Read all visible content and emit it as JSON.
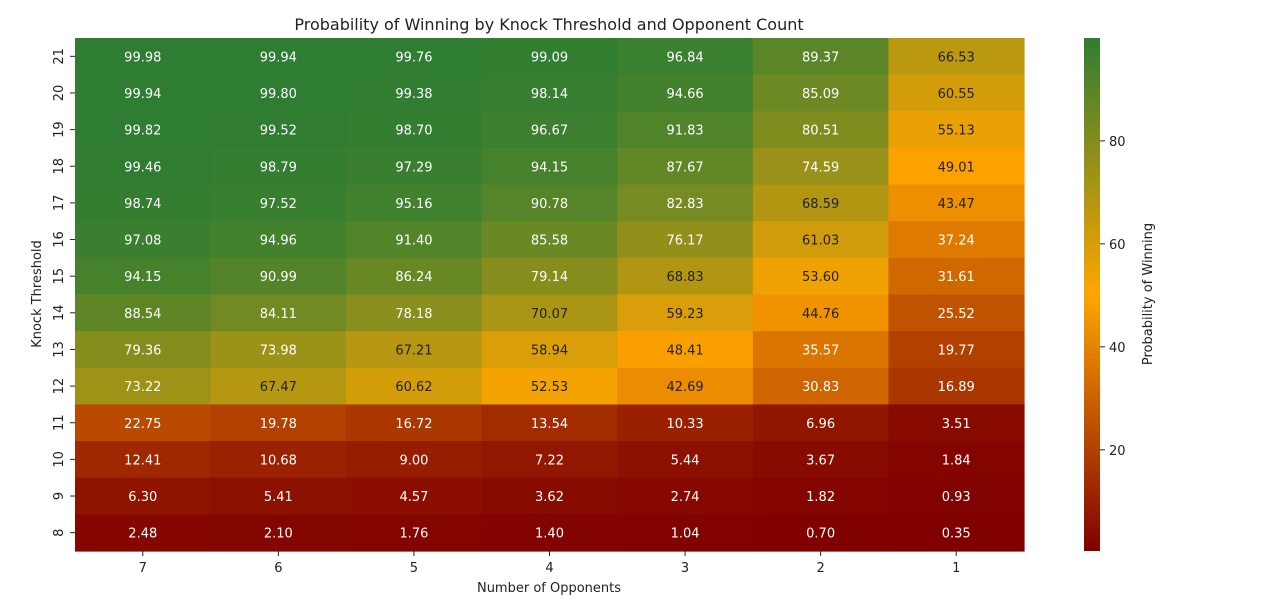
{
  "chart_data": {
    "type": "heatmap",
    "title": "Probability of Winning by Knock Threshold and Opponent Count",
    "xlabel": "Number of Opponents",
    "ylabel": "Knock Threshold",
    "x_categories": [
      "7",
      "6",
      "5",
      "4",
      "3",
      "2",
      "1"
    ],
    "y_categories": [
      "21",
      "20",
      "19",
      "18",
      "17",
      "16",
      "15",
      "14",
      "13",
      "12",
      "11",
      "10",
      "9",
      "8"
    ],
    "values": [
      [
        99.98,
        99.94,
        99.76,
        99.09,
        96.84,
        89.37,
        66.53
      ],
      [
        99.94,
        99.8,
        99.38,
        98.14,
        94.66,
        85.09,
        60.55
      ],
      [
        99.82,
        99.52,
        98.7,
        96.67,
        91.83,
        80.51,
        55.13
      ],
      [
        99.46,
        98.79,
        97.29,
        94.15,
        87.67,
        74.59,
        49.01
      ],
      [
        98.74,
        97.52,
        95.16,
        90.78,
        82.83,
        68.59,
        43.47
      ],
      [
        97.08,
        94.96,
        91.4,
        85.58,
        76.17,
        61.03,
        37.24
      ],
      [
        94.15,
        90.99,
        86.24,
        79.14,
        68.83,
        53.6,
        31.61
      ],
      [
        88.54,
        84.11,
        78.18,
        70.07,
        59.23,
        44.76,
        25.52
      ],
      [
        79.36,
        73.98,
        67.21,
        58.94,
        48.41,
        35.57,
        19.77
      ],
      [
        73.22,
        67.47,
        60.62,
        52.53,
        42.69,
        30.83,
        16.89
      ],
      [
        22.75,
        19.78,
        16.72,
        13.54,
        10.33,
        6.96,
        3.51
      ],
      [
        12.41,
        10.68,
        9.0,
        7.22,
        5.44,
        3.67,
        1.84
      ],
      [
        6.3,
        5.41,
        4.57,
        3.62,
        2.74,
        1.82,
        0.93
      ],
      [
        2.48,
        2.1,
        1.76,
        1.4,
        1.04,
        0.7,
        0.35
      ]
    ],
    "value_range": [
      0.35,
      99.98
    ],
    "colormap": [
      "#800000",
      "#ffa500",
      "#2e7d32"
    ],
    "colorbar_label": "Probability of Winning",
    "colorbar_ticks": [
      20,
      40,
      60,
      80
    ],
    "annotations": "values shown in each cell with 2 decimals"
  }
}
